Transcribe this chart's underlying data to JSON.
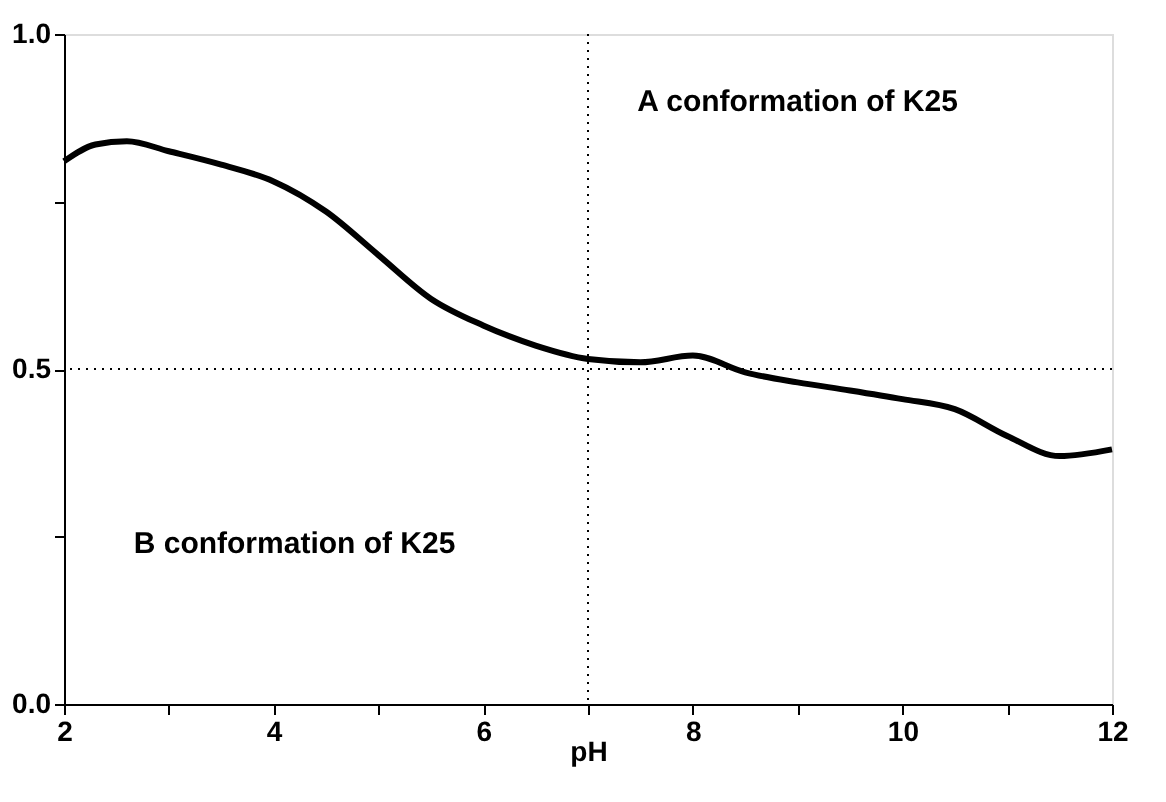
{
  "chart_data": {
    "type": "line",
    "xlabel": "pH",
    "x": [
      2,
      2.3,
      2.6,
      3,
      3.5,
      4,
      4.5,
      5,
      5.5,
      6,
      6.5,
      7,
      7.5,
      8,
      8.5,
      9,
      9.5,
      10,
      10.5,
      11,
      11.5,
      12
    ],
    "series": [
      {
        "color": "#000000",
        "values": [
          0.81,
          0.835,
          0.84,
          0.825,
          0.805,
          0.78,
          0.735,
          0.67,
          0.605,
          0.565,
          0.535,
          0.515,
          0.51,
          0.52,
          0.495,
          0.48,
          0.468,
          0.455,
          0.44,
          0.4,
          0.37,
          0.38
        ]
      }
    ],
    "xlim": [
      2,
      12
    ],
    "ylim": [
      0,
      1
    ],
    "xticks": [
      2,
      {
        "value": 3,
        "label": null
      },
      4,
      {
        "value": 5,
        "label": null
      },
      6,
      {
        "value": 7,
        "label": null
      },
      8,
      {
        "value": 9,
        "label": null
      },
      10,
      {
        "value": 11,
        "label": null
      },
      12
    ],
    "yticks": [
      {
        "value": 0,
        "label": "0.0"
      },
      {
        "value": 0.25,
        "label": null
      },
      {
        "value": 0.5,
        "label": "0.5"
      },
      {
        "value": 0.75,
        "label": null
      },
      {
        "value": 1,
        "label": "1.0"
      }
    ],
    "ref_lines": [
      {
        "axis": "x",
        "value": 7,
        "line_style": "dotted"
      },
      {
        "axis": "y",
        "value": 0.5,
        "line_style": "dotted"
      }
    ],
    "annotations": [
      "A conformation of K25",
      "B conformation of K25"
    ],
    "grid": false,
    "marker": "none",
    "line_style": "solid"
  }
}
